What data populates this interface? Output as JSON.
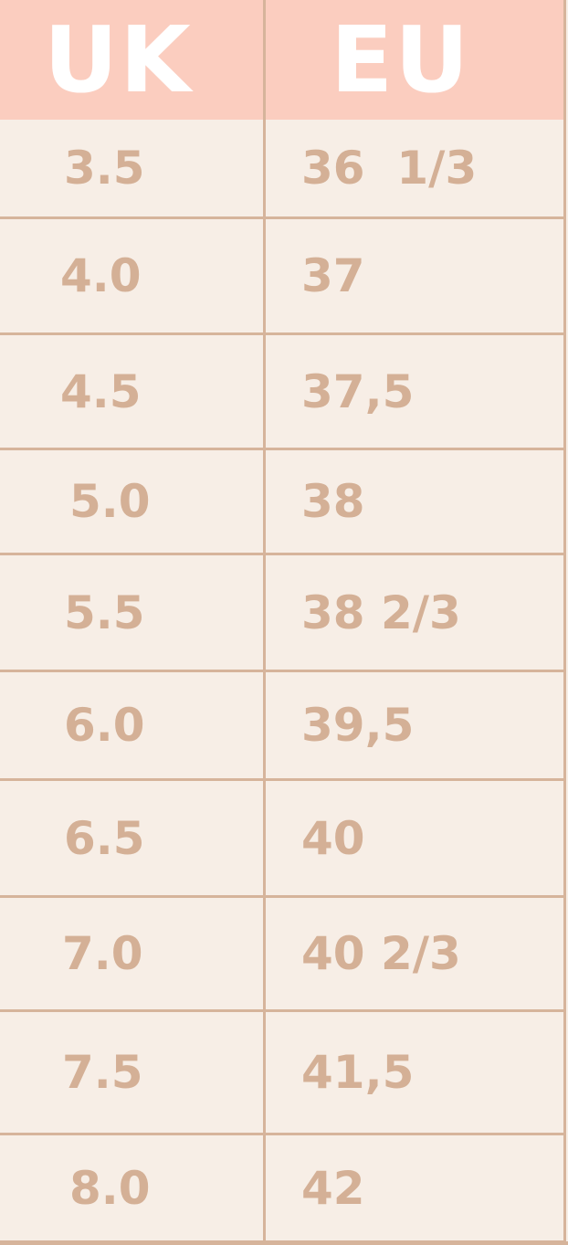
{
  "headers": {
    "uk": "UK",
    "eu": "EU"
  },
  "colors": {
    "header_bg": "#fbcdbf",
    "body_bg": "#f7eee6",
    "text": "#d4b096",
    "lines": "#d6b49b"
  },
  "rows": [
    {
      "uk": "3.5",
      "eu": "36  1/3"
    },
    {
      "uk": "4.0",
      "eu": "37"
    },
    {
      "uk": "4.5",
      "eu": "37,5"
    },
    {
      "uk": "5.0",
      "eu": "38"
    },
    {
      "uk": "5.5",
      "eu": "38 2/3"
    },
    {
      "uk": "6.0",
      "eu": "39,5"
    },
    {
      "uk": "6.5",
      "eu": "40"
    },
    {
      "uk": "7.0",
      "eu": "40 2/3"
    },
    {
      "uk": "7.5",
      "eu": "41,5"
    },
    {
      "uk": "8.0",
      "eu": "42"
    }
  ]
}
